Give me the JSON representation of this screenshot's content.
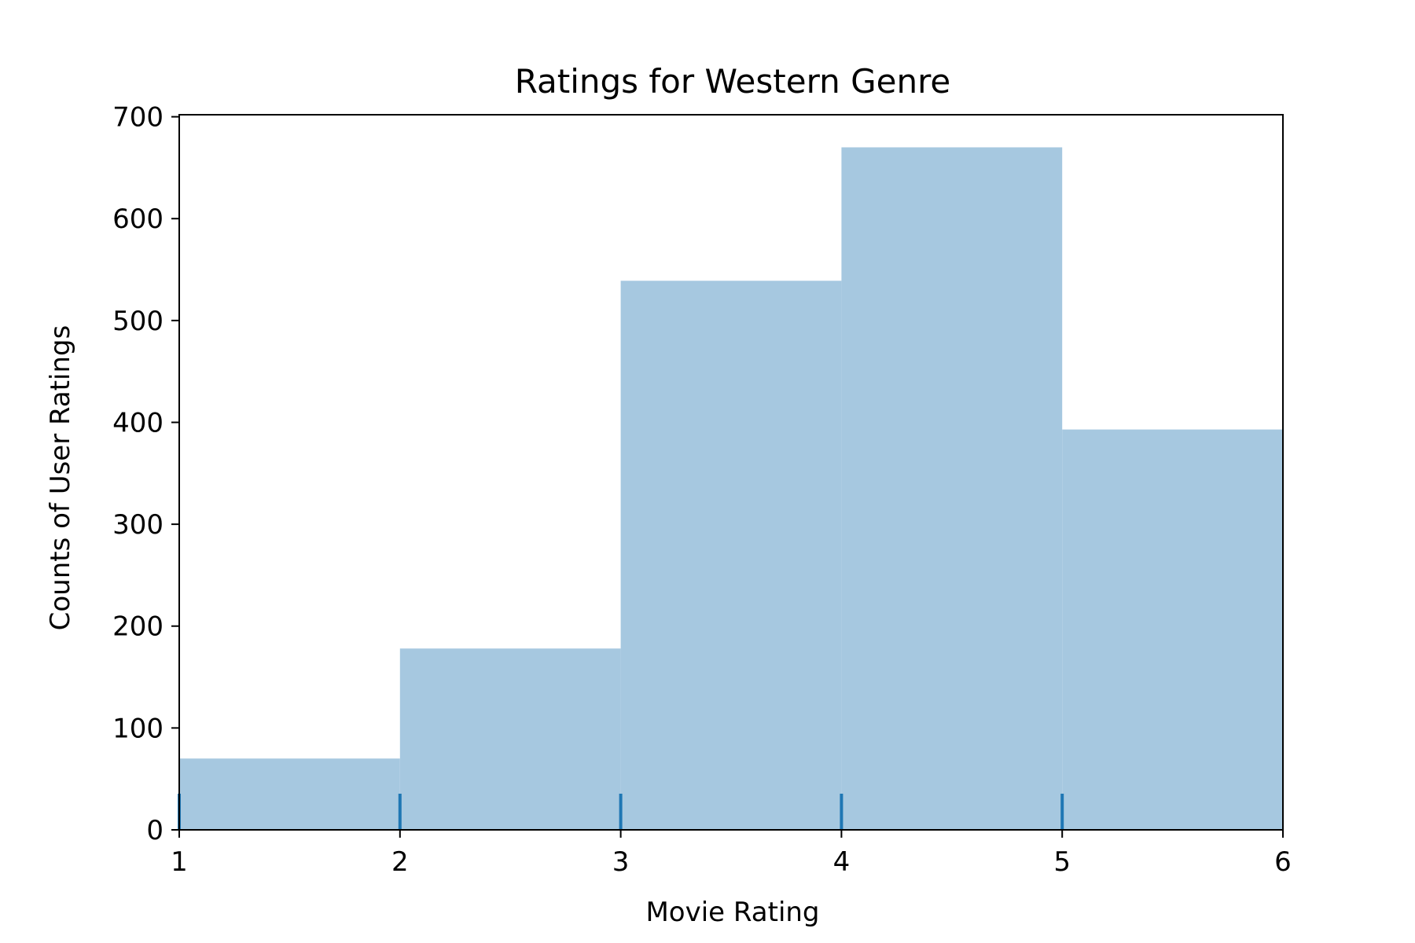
{
  "chart_data": {
    "type": "bar",
    "title": "Ratings for Western Genre",
    "xlabel": "Movie Rating",
    "ylabel": "Counts of User Ratings",
    "bins": [
      {
        "start": 1,
        "end": 2,
        "value": 70
      },
      {
        "start": 2,
        "end": 3,
        "value": 178
      },
      {
        "start": 3,
        "end": 4,
        "value": 539
      },
      {
        "start": 4,
        "end": 5,
        "value": 670
      },
      {
        "start": 5,
        "end": 6,
        "value": 393
      }
    ],
    "rug": [
      1,
      2,
      3,
      4,
      5
    ],
    "xlim": [
      1,
      6
    ],
    "ylim": [
      0,
      702
    ],
    "xticks": [
      "1",
      "2",
      "3",
      "4",
      "5",
      "6"
    ],
    "yticks": [
      "0",
      "100",
      "200",
      "300",
      "400",
      "500",
      "600",
      "700"
    ],
    "grid": false,
    "colors": {
      "bar": "#a6c8e0",
      "rug": "#1f77b4",
      "axis": "#000000"
    }
  }
}
